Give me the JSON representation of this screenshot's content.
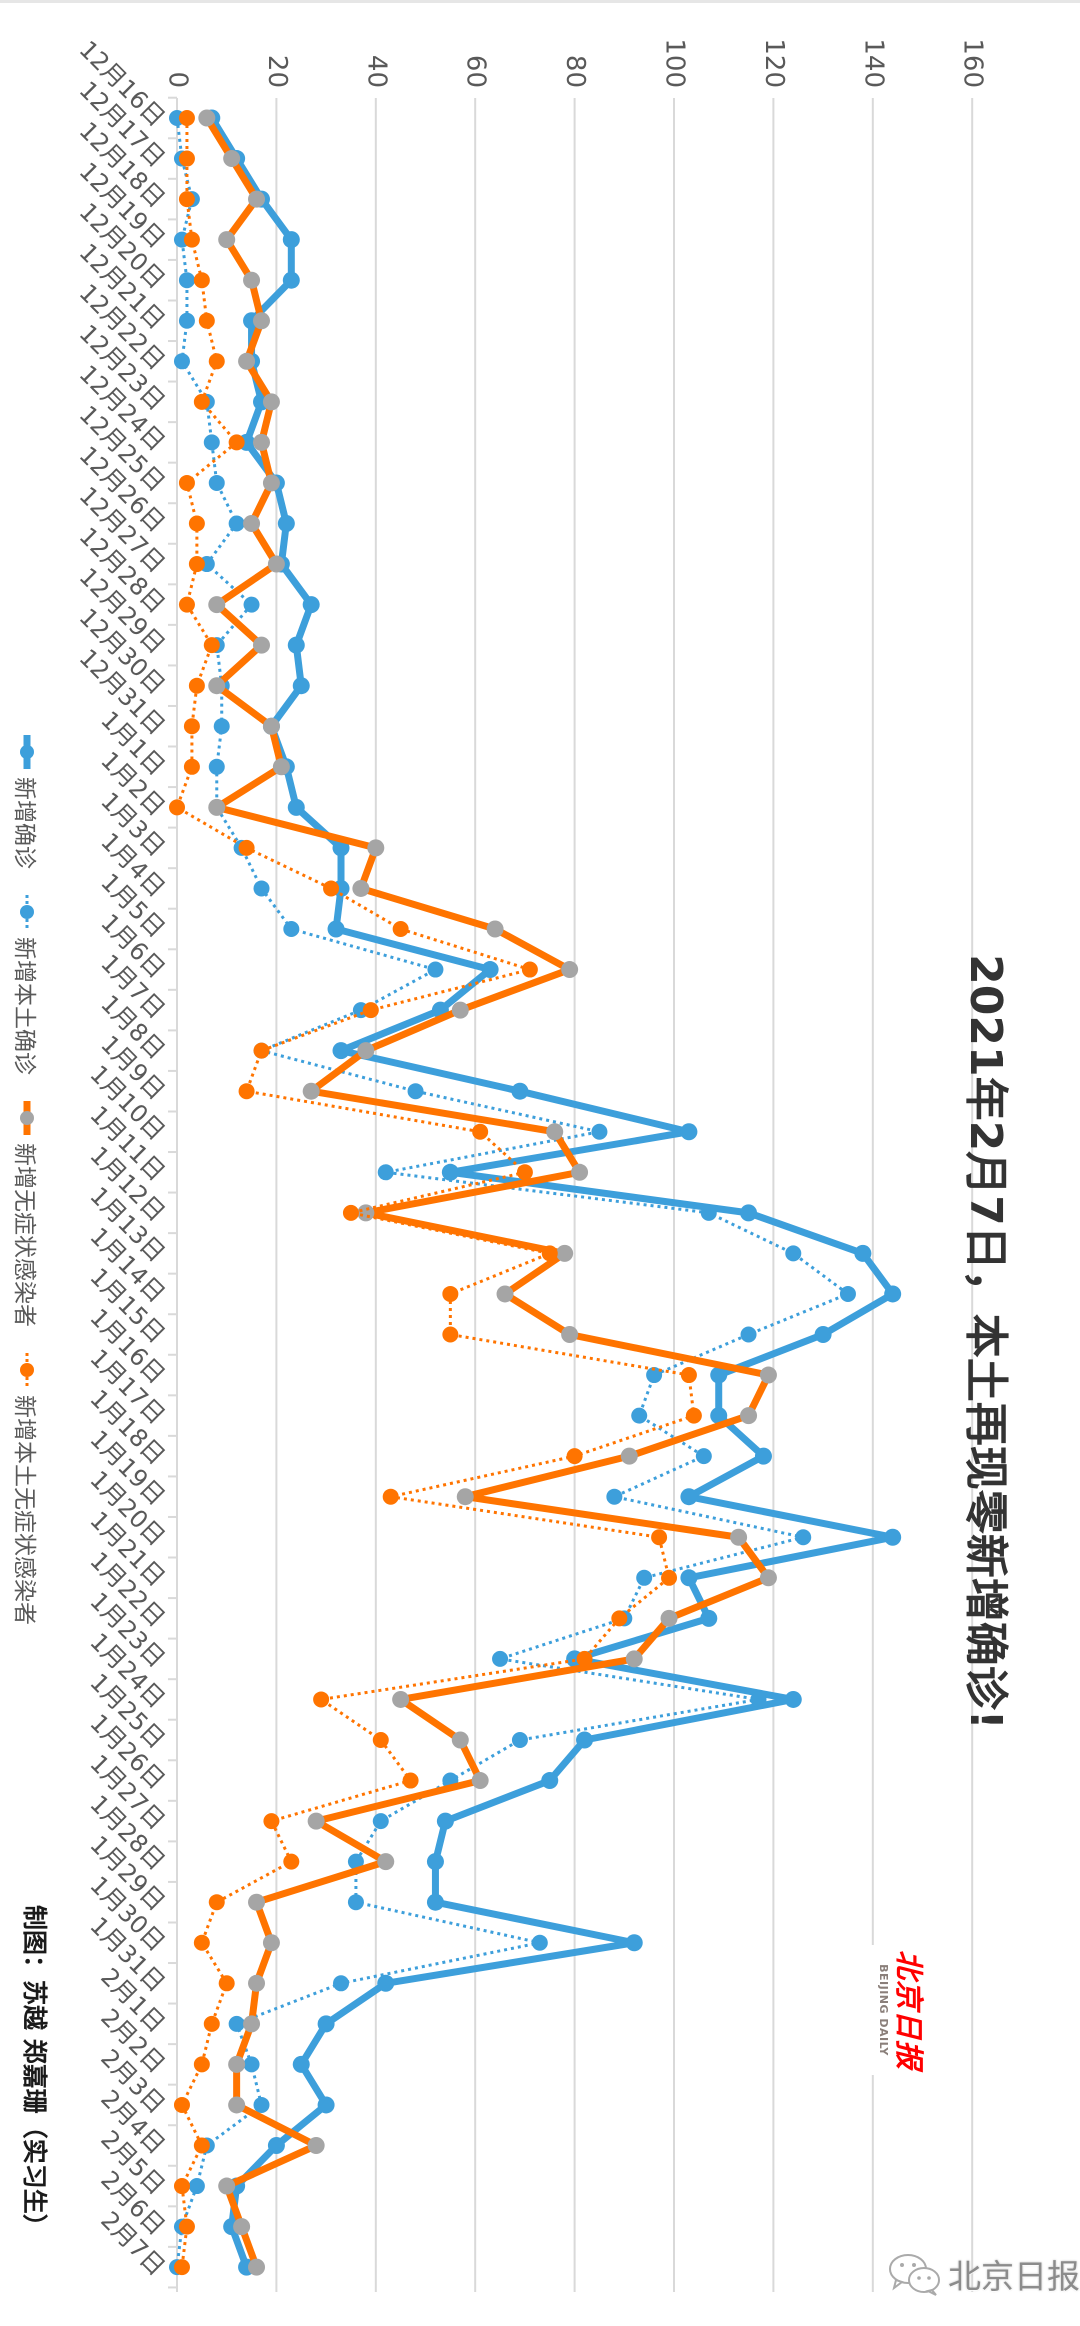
{
  "title": "2021年2月7日，本土再现零新增确诊!",
  "credit": "制图：苏越 郑嘉珊（实习生）",
  "logo": {
    "cn": "北京日报",
    "en": "BEIJING DAILY"
  },
  "watermark": {
    "icon": "wechat-icon",
    "text": "北京日报"
  },
  "colors": {
    "blue": "#3d9fdb",
    "orange": "#ff7400",
    "gray": "#a5a5a5"
  },
  "chart_data": {
    "type": "line",
    "orientation": "rotated-90-clockwise",
    "title": "2021年2月7日，本土再现零新增确诊!",
    "ylim": [
      0,
      160
    ],
    "yticks": [
      "0",
      "20",
      "40",
      "60",
      "80",
      "100",
      "120",
      "140",
      "160"
    ],
    "grid": true,
    "legend_placement": "bottom",
    "categories": [
      "12月16日",
      "12月17日",
      "12月18日",
      "12月19日",
      "12月20日",
      "12月21日",
      "12月22日",
      "12月23日",
      "12月24日",
      "12月25日",
      "12月26日",
      "12月27日",
      "12月28日",
      "12月29日",
      "12月30日",
      "12月31日",
      "1月1日",
      "1月2日",
      "1月3日",
      "1月4日",
      "1月5日",
      "1月6日",
      "1月7日",
      "1月8日",
      "1月9日",
      "1月10日",
      "1月11日",
      "1月12日",
      "1月13日",
      "1月14日",
      "1月15日",
      "1月16日",
      "1月17日",
      "1月18日",
      "1月19日",
      "1月20日",
      "1月21日",
      "1月22日",
      "1月23日",
      "1月24日",
      "1月25日",
      "1月26日",
      "1月27日",
      "1月28日",
      "1月29日",
      "1月30日",
      "1月31日",
      "2月1日",
      "2月2日",
      "2月3日",
      "2月4日",
      "2月5日",
      "2月6日",
      "2月7日"
    ],
    "series": [
      {
        "name": "新增确诊",
        "style": "solid",
        "line_color": "#3d9fdb",
        "marker_color": "#3d9fdb",
        "values": [
          7,
          12,
          17,
          23,
          23,
          15,
          15,
          17,
          14,
          20,
          22,
          21,
          27,
          24,
          25,
          19,
          22,
          24,
          33,
          33,
          32,
          63,
          53,
          33,
          69,
          103,
          55,
          115,
          138,
          144,
          130,
          109,
          109,
          118,
          103,
          144,
          103,
          107,
          80,
          124,
          82,
          75,
          54,
          52,
          52,
          92,
          42,
          30,
          25,
          30,
          20,
          12,
          11,
          14
        ]
      },
      {
        "name": "新增本土确诊",
        "style": "dotted",
        "line_color": "#3d9fdb",
        "marker_color": "#3d9fdb",
        "values": [
          0,
          1,
          3,
          1,
          2,
          2,
          1,
          6,
          7,
          8,
          12,
          6,
          15,
          8,
          9,
          9,
          8,
          8,
          13,
          17,
          23,
          52,
          37,
          17,
          48,
          85,
          42,
          107,
          124,
          135,
          115,
          96,
          93,
          106,
          88,
          126,
          94,
          90,
          65,
          117,
          69,
          55,
          41,
          36,
          36,
          73,
          33,
          12,
          15,
          17,
          6,
          4,
          1,
          0
        ]
      },
      {
        "name": "新增无症状感染者",
        "style": "solid",
        "line_color": "#ff7400",
        "marker_color": "#a5a5a5",
        "values": [
          6,
          11,
          16,
          10,
          15,
          17,
          14,
          19,
          17,
          19,
          15,
          20,
          8,
          17,
          8,
          19,
          21,
          8,
          40,
          37,
          64,
          79,
          57,
          38,
          27,
          76,
          81,
          38,
          78,
          66,
          79,
          119,
          115,
          91,
          58,
          113,
          119,
          99,
          92,
          45,
          57,
          61,
          28,
          42,
          16,
          19,
          16,
          15,
          12,
          12,
          28,
          10,
          13,
          16
        ]
      },
      {
        "name": "新增本土无症状感染者",
        "style": "dotted",
        "line_color": "#ff7400",
        "marker_color": "#ff7400",
        "values": [
          2,
          2,
          2,
          3,
          5,
          6,
          8,
          5,
          12,
          2,
          4,
          4,
          2,
          7,
          4,
          3,
          3,
          0,
          14,
          31,
          45,
          71,
          39,
          17,
          14,
          61,
          70,
          35,
          75,
          55,
          55,
          103,
          104,
          80,
          43,
          97,
          99,
          89,
          82,
          29,
          41,
          47,
          19,
          23,
          8,
          5,
          10,
          7,
          5,
          1,
          5,
          1,
          2,
          1
        ]
      }
    ]
  }
}
